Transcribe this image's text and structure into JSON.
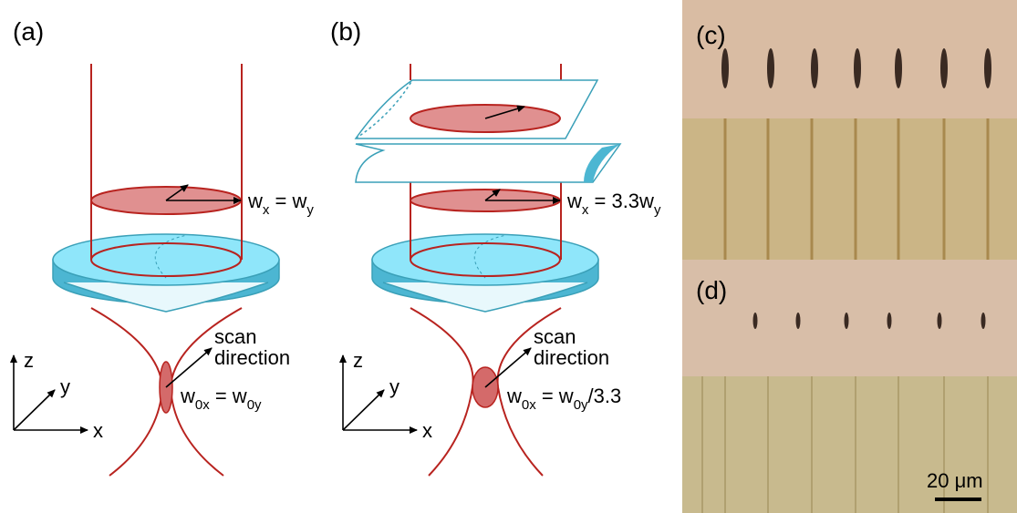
{
  "panel_labels": [
    "(a)",
    "(b)",
    "(c)",
    "(d)"
  ],
  "panel_a": {
    "beam_width": [
      "w",
      "x",
      " = w",
      "y"
    ],
    "scan": [
      "scan",
      "direction"
    ],
    "waist": [
      "w",
      "0x",
      " = w",
      "0y"
    ],
    "axes": [
      "z",
      "y",
      "x"
    ]
  },
  "panel_b": {
    "beam_width": [
      "w",
      "x",
      " = 3.3w",
      "y"
    ],
    "scan": [
      "scan",
      "direction"
    ],
    "waist": [
      "w",
      "0x",
      " = w",
      "0y",
      "/3.3"
    ],
    "axes": [
      "z",
      "y",
      "x"
    ]
  },
  "scale_bar": "20 μm"
}
